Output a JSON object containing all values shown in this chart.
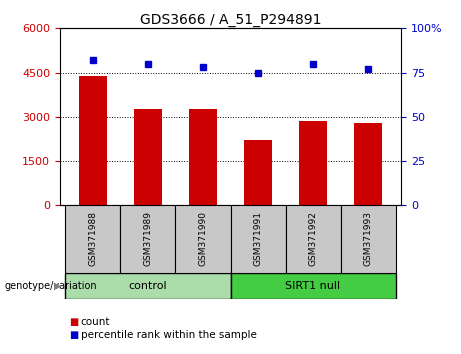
{
  "title": "GDS3666 / A_51_P294891",
  "samples": [
    "GSM371988",
    "GSM371989",
    "GSM371990",
    "GSM371991",
    "GSM371992",
    "GSM371993"
  ],
  "counts": [
    4400,
    3250,
    3250,
    2200,
    2850,
    2800
  ],
  "percentiles": [
    82,
    80,
    78,
    75,
    80,
    77
  ],
  "bar_color": "#cc0000",
  "dot_color": "#0000cc",
  "left_ylim": [
    0,
    6000
  ],
  "right_ylim": [
    0,
    100
  ],
  "left_yticks": [
    0,
    1500,
    3000,
    4500,
    6000
  ],
  "right_yticks": [
    0,
    25,
    50,
    75,
    100
  ],
  "grid_values": [
    1500,
    3000,
    4500
  ],
  "groups": [
    {
      "label": "control",
      "indices": [
        0,
        1,
        2
      ],
      "color": "#aaddaa"
    },
    {
      "label": "SIRT1 null",
      "indices": [
        3,
        4,
        5
      ],
      "color": "#44cc44"
    }
  ],
  "group_label_prefix": "genotype/variation",
  "legend_count_label": "count",
  "legend_percentile_label": "percentile rank within the sample",
  "tick_label_color_left": "#cc0000",
  "tick_label_color_right": "#0000cc",
  "bar_width": 0.5,
  "sample_bg_color": "#c8c8c8",
  "title_fontsize": 10,
  "tick_fontsize": 8,
  "legend_fontsize": 7.5
}
